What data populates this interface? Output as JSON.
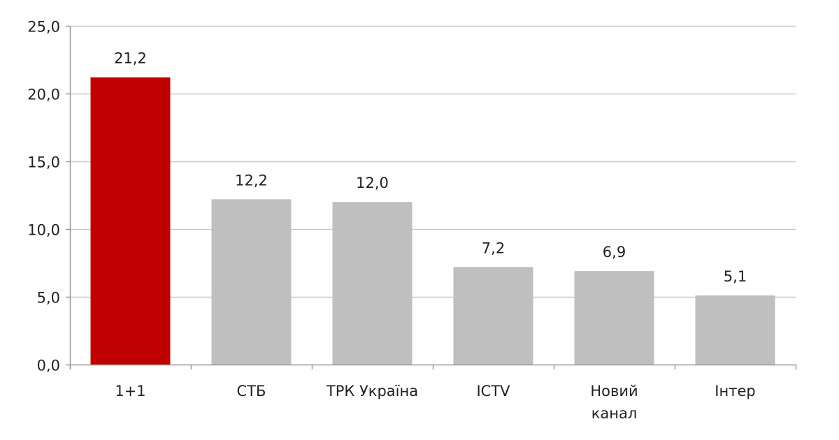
{
  "chart_data": {
    "type": "bar",
    "categories": [
      "1+1",
      "СТБ",
      "ТРК Україна",
      "ICTV",
      "Новий канал",
      "Інтер"
    ],
    "category_lines": [
      [
        "1+1"
      ],
      [
        "СТБ"
      ],
      [
        "ТРК Україна"
      ],
      [
        "ICTV"
      ],
      [
        "Новий",
        "канал"
      ],
      [
        "Інтер"
      ]
    ],
    "values": [
      21.2,
      12.2,
      12.0,
      7.2,
      6.9,
      5.1
    ],
    "value_labels": [
      "21,2",
      "12,2",
      "12,0",
      "7,2",
      "6,9",
      "5,1"
    ],
    "title": "",
    "xlabel": "",
    "ylabel": "",
    "ylim": [
      0,
      25
    ],
    "yticks": [
      0,
      5,
      10,
      15,
      20,
      25
    ],
    "ytick_labels": [
      "0,0",
      "5,0",
      "10,0",
      "15,0",
      "20,0",
      "25,0"
    ],
    "grid": true,
    "legend": "none",
    "colors": {
      "highlight": "#c00000",
      "default": "#bfbfbf",
      "grid": "#c8c8c8",
      "axis": "#9a9a9a"
    },
    "bar_colors": [
      "#c00000",
      "#bfbfbf",
      "#bfbfbf",
      "#bfbfbf",
      "#bfbfbf",
      "#bfbfbf"
    ]
  }
}
